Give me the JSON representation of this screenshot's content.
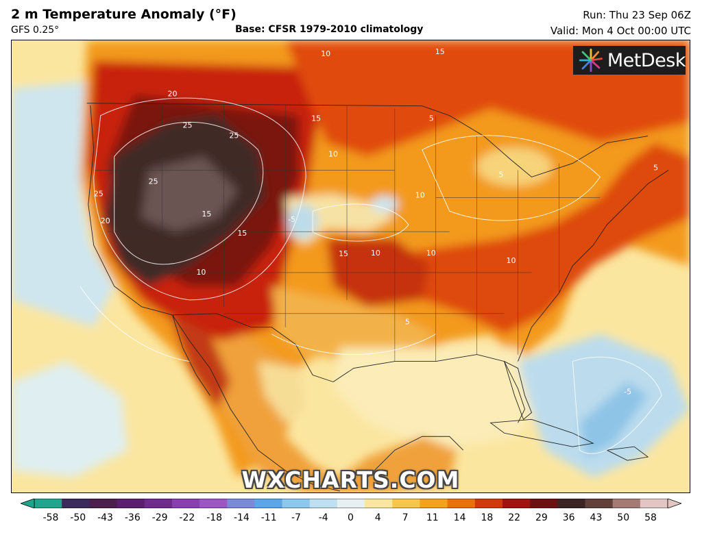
{
  "header": {
    "title": "2 m Temperature Anomaly (°F)",
    "model": "GFS 0.25°",
    "base": "Base: CFSR 1979-2010 climatology",
    "run": "Run: Thu 23 Sep 06Z",
    "valid": "Valid: Mon 4 Oct 00:00 UTC"
  },
  "brand": {
    "name": "MetDesk",
    "icon": "metdesk-starburst-icon"
  },
  "watermark": "WXCHARTS.COM",
  "colors": {
    "ocean_neutral": "#fbe6a0",
    "cold": "#bfe0f0",
    "warm_light": "#f7b53a",
    "warm": "#ee7b10",
    "hot": "#d3300d",
    "very_hot": "#8a1410",
    "extreme": "#3b2523"
  },
  "map": {
    "contour_labels": [
      {
        "text": "20"
      },
      {
        "text": "25"
      },
      {
        "text": "25"
      },
      {
        "text": "25"
      },
      {
        "text": "25"
      },
      {
        "text": "20"
      },
      {
        "text": "15"
      },
      {
        "text": "15"
      },
      {
        "text": "15"
      },
      {
        "text": "15"
      },
      {
        "text": "10"
      },
      {
        "text": "10"
      },
      {
        "text": "10"
      },
      {
        "text": "10"
      },
      {
        "text": "10"
      },
      {
        "text": "10"
      },
      {
        "text": "5"
      },
      {
        "text": "5"
      },
      {
        "text": "5"
      },
      {
        "text": "5"
      },
      {
        "text": "-5"
      },
      {
        "text": "-5"
      },
      {
        "text": "10"
      },
      {
        "text": "15"
      }
    ]
  },
  "colorbar": {
    "ticks": [
      "-58",
      "-50",
      "-43",
      "-36",
      "-29",
      "-22",
      "-18",
      "-14",
      "-11",
      "-7",
      "-4",
      "0",
      "4",
      "7",
      "11",
      "14",
      "18",
      "22",
      "29",
      "36",
      "43",
      "50",
      "58"
    ],
    "colors": [
      "#1fa58c",
      "#3b2a5c",
      "#4b1e4d",
      "#5a1f6e",
      "#6e2a8c",
      "#8a3fae",
      "#9c57c4",
      "#7a8ad8",
      "#5aa6e6",
      "#8cc7ee",
      "#bfe0f0",
      "#e6f0f2",
      "#fbe6a0",
      "#f7c64a",
      "#f3a21f",
      "#e9710c",
      "#cf3a0c",
      "#9e150f",
      "#6b1211",
      "#3b2523",
      "#62403a",
      "#a57a74",
      "#e3c6c3"
    ]
  }
}
